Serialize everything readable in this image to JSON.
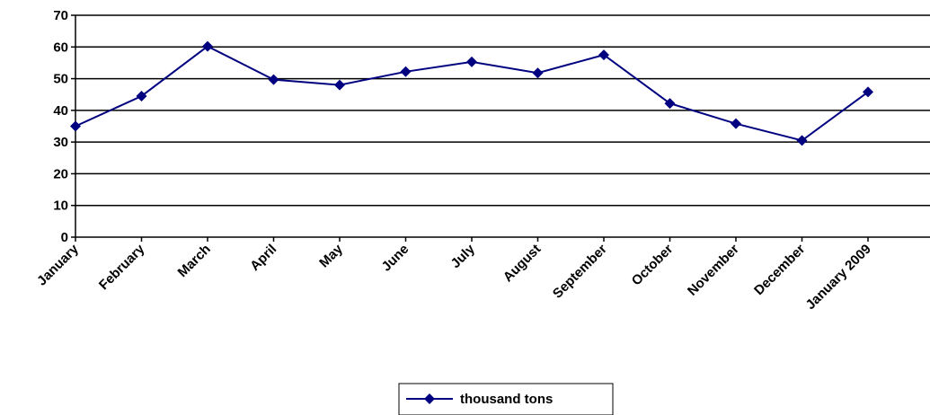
{
  "chart_data": {
    "type": "line",
    "categories": [
      "January",
      "February",
      "March",
      "April",
      "May",
      "June",
      "July",
      "August",
      "September",
      "October",
      "November",
      "December",
      "January 2009"
    ],
    "series": [
      {
        "name": "thousand tons",
        "values": [
          35,
          44.5,
          60.2,
          49.7,
          48,
          52.2,
          55.3,
          51.8,
          57.5,
          42.2,
          35.8,
          30.5,
          45.8
        ],
        "color": "#000080",
        "marker": "diamond"
      }
    ],
    "title": "",
    "xlabel": "",
    "ylabel": "",
    "ylim": [
      0,
      70
    ],
    "yticks": [
      0,
      10,
      20,
      30,
      40,
      50,
      60,
      70
    ],
    "grid": true,
    "legend_position": "bottom"
  }
}
